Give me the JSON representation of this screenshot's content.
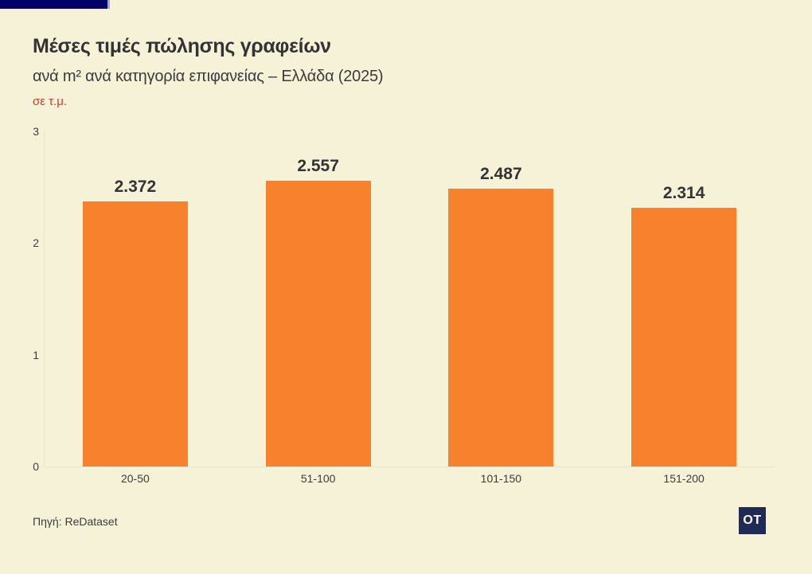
{
  "page": {
    "background": "#f5f2d8",
    "accent_bar_color": "#010066"
  },
  "header": {
    "title": "Μέσες τιμές πώλησης γραφείων",
    "subtitle": "ανά m² ανά κατηγορία επιφανείας – Ελλάδα (2025)",
    "unit_note": "σε τ.μ.",
    "unit_note_color": "#cb3a32"
  },
  "chart_data": {
    "type": "bar",
    "title": "Μέσες τιμές πώλησης γραφείων",
    "subtitle": "ανά m² ανά κατηγορία επιφανείας – Ελλάδα (2025)",
    "unit": "σε τ.μ.",
    "categories": [
      "20-50",
      "51-100",
      "101-150",
      "151-200"
    ],
    "values": [
      2.372,
      2.557,
      2.487,
      2.314
    ],
    "value_labels": [
      "2.372",
      "2.557",
      "2.487",
      "2.314"
    ],
    "y_ticks": [
      0,
      1,
      2,
      3
    ],
    "ylim": [
      0,
      3
    ],
    "xlabel": "",
    "ylabel": "",
    "bar_color": "#f7812c",
    "grid": false,
    "legend": false
  },
  "footer": {
    "source": "Πηγή: ReDataset",
    "logo_text": "OT",
    "logo_color": "#1f2a55"
  }
}
